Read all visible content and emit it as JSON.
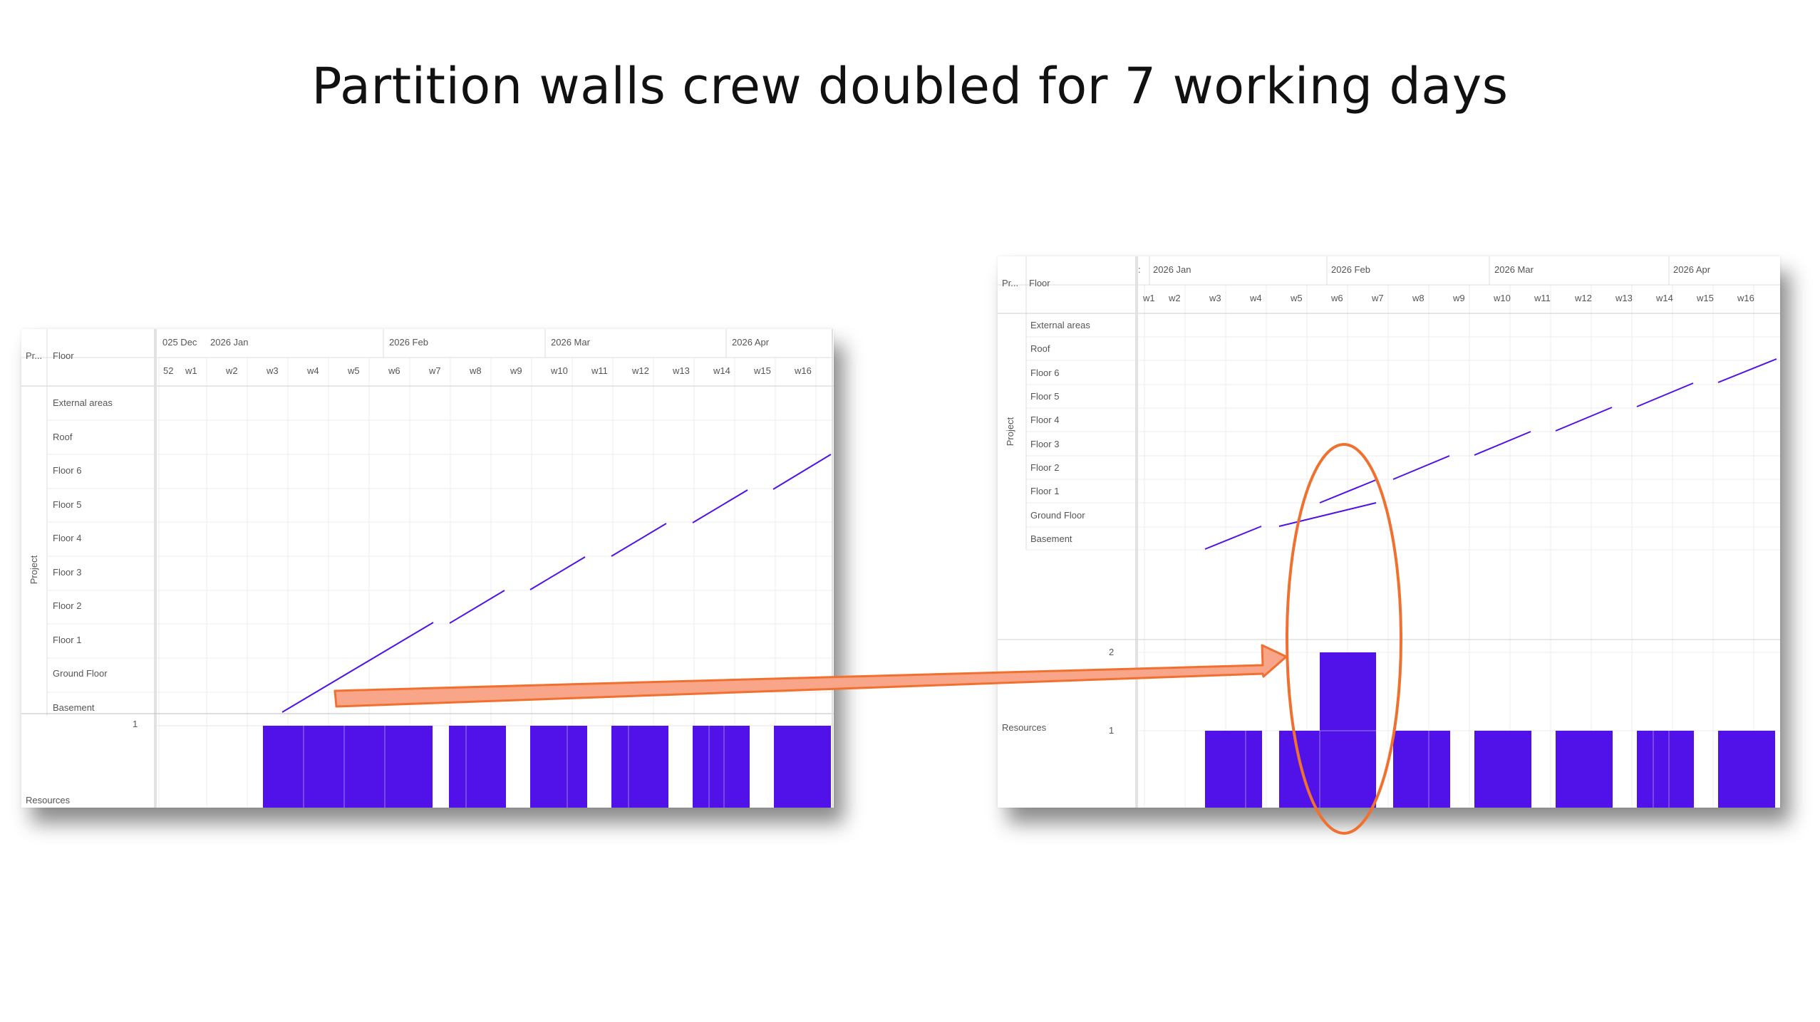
{
  "slide_title": "Partition walls crew doubled for 7 working days",
  "accent_color": "#5012e8",
  "highlight_color": "#f07030",
  "arrow_fill": "#f9a58a",
  "before": {
    "header_project_label": "Pr...",
    "header_floor_label": "Floor",
    "month_labels": [
      "025 Dec",
      "2026 Jan",
      "2026 Feb",
      "2026 Mar",
      "2026 Apr"
    ],
    "week_labels": [
      "52",
      "w1",
      "w2",
      "w3",
      "w4",
      "w5",
      "w6",
      "w7",
      "w8",
      "w9",
      "w10",
      "w11",
      "w12",
      "w13",
      "w14",
      "w15",
      "w16"
    ],
    "group_label": "Project",
    "floors": [
      "External areas",
      "Roof",
      "Floor 6",
      "Floor 5",
      "Floor 4",
      "Floor 3",
      "Floor 2",
      "Floor 1",
      "Ground Floor",
      "Basement"
    ],
    "resources_label": "Resources",
    "resource_axis": [
      "1"
    ]
  },
  "after": {
    "header_project_label": "Pr...",
    "header_floor_label": "Floor",
    "month_labels": [
      "2026 Jan",
      "2026 Feb",
      "2026 Mar",
      "2026 Apr"
    ],
    "week_labels": [
      "w1",
      "w2",
      "w3",
      "w4",
      "w5",
      "w6",
      "w7",
      "w8",
      "w9",
      "w10",
      "w11",
      "w12",
      "w13",
      "w14",
      "w15",
      "w16"
    ],
    "group_label": "Project",
    "floors": [
      "External areas",
      "Roof",
      "Floor 6",
      "Floor 5",
      "Floor 4",
      "Floor 3",
      "Floor 2",
      "Floor 1",
      "Ground Floor",
      "Basement"
    ],
    "resources_label": "Resources",
    "resource_axis": [
      "2",
      "1"
    ]
  }
}
